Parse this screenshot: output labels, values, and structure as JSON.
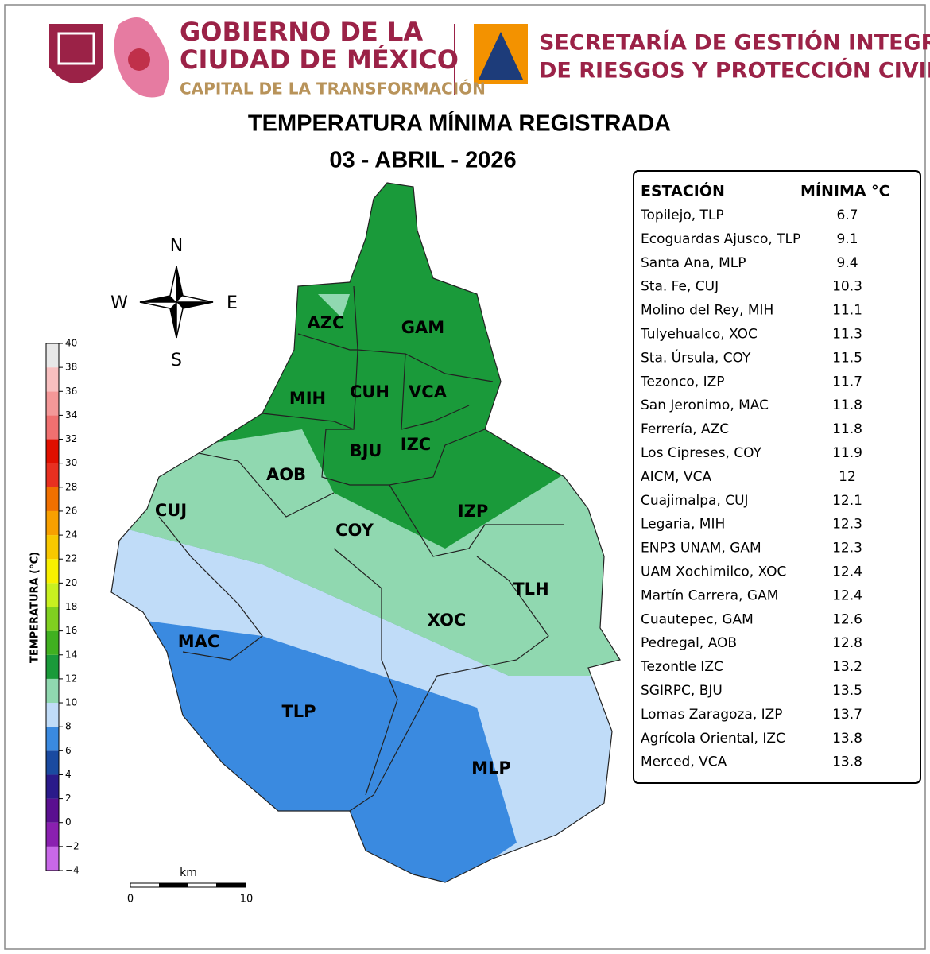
{
  "header": {
    "gov_lines": [
      "GOBIERNO DE LA",
      "CIUDAD DE MÉXICO",
      "CAPITAL DE LA TRANSFORMACIÓN"
    ],
    "secretaria_lines": [
      "SECRETARÍA DE GESTIÓN INTEGRAL",
      "DE RIESGOS Y PROTECCIÓN CIVIL"
    ]
  },
  "title": "TEMPERATURA MÍNIMA REGISTRADA",
  "date": "03 - ABRIL - 2026",
  "table": {
    "headers": [
      "ESTACIÓN",
      "MÍNIMA °C"
    ],
    "rows": [
      [
        "Topilejo, TLP",
        6.7
      ],
      [
        "Ecoguardas Ajusco, TLP",
        9.1
      ],
      [
        "Santa Ana, MLP",
        9.4
      ],
      [
        "Sta. Fe, CUJ",
        10.3
      ],
      [
        "Molino del Rey, MIH",
        11.1
      ],
      [
        "Tulyehualco, XOC",
        11.3
      ],
      [
        "Sta. Úrsula, COY",
        11.5
      ],
      [
        "Tezonco, IZP",
        11.7
      ],
      [
        "San Jeronimo, MAC",
        11.8
      ],
      [
        "Ferrería, AZC",
        11.8
      ],
      [
        "Los Cipreses, COY",
        11.9
      ],
      [
        "AICM, VCA",
        12
      ],
      [
        "Cuajimalpa, CUJ",
        12.1
      ],
      [
        "Legaria, MIH",
        12.3
      ],
      [
        "ENP3 UNAM,  GAM",
        12.3
      ],
      [
        "UAM Xochimilco, XOC",
        12.4
      ],
      [
        "Martín Carrera, GAM",
        12.4
      ],
      [
        "Cuautepec, GAM",
        12.6
      ],
      [
        "Pedregal, AOB",
        12.8
      ],
      [
        "Tezontle IZC",
        13.2
      ],
      [
        "SGIRPC, BJU",
        13.5
      ],
      [
        "Lomas Zaragoza, IZP",
        13.7
      ],
      [
        "Agrícola Oriental, IZC",
        13.8
      ],
      [
        "Merced, VCA",
        13.8
      ]
    ]
  },
  "colorbar": {
    "label": "TEMPERATURA (°C)",
    "ticks": [
      {
        "value": -4,
        "label": "−4"
      },
      {
        "value": -2,
        "label": "−2"
      },
      0,
      2,
      4,
      6,
      8,
      10,
      12,
      14,
      16,
      18,
      20,
      22,
      24,
      26,
      28,
      30,
      32,
      34,
      36,
      38,
      40
    ],
    "colors": [
      "#c868e8",
      "#8a20b0",
      "#5a1090",
      "#2a1a8a",
      "#1a4aa0",
      "#3a8ae0",
      "#c0dcf8",
      "#90d8b0",
      "#1a9a3a",
      "#40b020",
      "#80d020",
      "#c8f020",
      "#f8f000",
      "#f8c800",
      "#f8a000",
      "#f07000",
      "#e83020",
      "#e01000",
      "#f07070",
      "#f49898",
      "#f8c0c0",
      "#e8e8e8"
    ]
  },
  "districts": [
    "AZC",
    "GAM",
    "MIH",
    "CUH",
    "VCA",
    "BJU",
    "IZC",
    "AOB",
    "CUJ",
    "IZP",
    "COY",
    "TLH",
    "XOC",
    "MAC",
    "TLP",
    "MLP"
  ],
  "compass": {
    "north": "N",
    "south": "S",
    "east": "E",
    "west": "W"
  },
  "scale_bar": {
    "unit": "km",
    "ticks": [
      0,
      10
    ]
  }
}
